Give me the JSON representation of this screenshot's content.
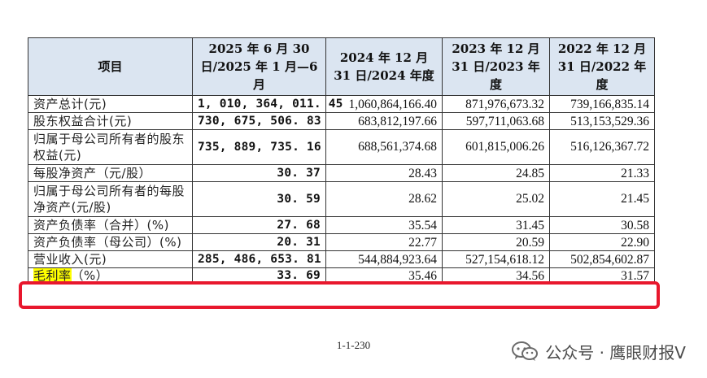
{
  "table": {
    "headers": [
      "项目",
      "2025 年 6 月 30 日/2025 年 1 月—6 月",
      "2024 年 12 月 31 日/2024 年度",
      "2023 年 12 月 31 日/2023 年度",
      "2022 年 12 月 31 日/2022 年度"
    ],
    "rows": [
      {
        "label": "资产总计(元)",
        "values": [
          "1, 010, 364, 011. 45",
          "1,060,864,166.40",
          "871,976,673.32",
          "739,166,835.14"
        ]
      },
      {
        "label": "股东权益合计(元)",
        "values": [
          "730, 675, 506. 83",
          "683,812,197.66",
          "597,711,063.68",
          "513,153,529.36"
        ]
      },
      {
        "label": "归属于母公司所有者的股东权益(元)",
        "values": [
          "735, 889, 735. 16",
          "688,561,374.68",
          "601,815,006.26",
          "516,126,367.72"
        ]
      },
      {
        "label": "每股净资产（元/股）",
        "values": [
          "30. 37",
          "28.43",
          "24.85",
          "21.33"
        ]
      },
      {
        "label": "归属于母公司所有者的每股净资产(元/股)",
        "values": [
          "30. 59",
          "28.62",
          "25.02",
          "21.45"
        ]
      },
      {
        "label": "资产负债率（合并）(%)",
        "values": [
          "27. 68",
          "35.54",
          "31.45",
          "30.58"
        ]
      },
      {
        "label": "资产负债率（母公司）(%)",
        "values": [
          "20. 31",
          "22.77",
          "20.59",
          "22.90"
        ]
      },
      {
        "label": "营业收入(元)",
        "values": [
          "285, 486, 653. 81",
          "544,884,923.64",
          "527,154,618.12",
          "502,854,602.87"
        ]
      },
      {
        "label_highlight": "毛利率",
        "label_rest": "（%）",
        "values": [
          "33. 69",
          "35.46",
          "34.56",
          "31.57"
        ]
      }
    ]
  },
  "page_number": "1-1-230",
  "watermark": {
    "text": "公众号 · 鹰眼财报V",
    "icon": "wechat-icon"
  },
  "colors": {
    "header_bg": "#dbe5f1",
    "highlight": "#ffff00",
    "annotation_box": "#e8172d"
  }
}
